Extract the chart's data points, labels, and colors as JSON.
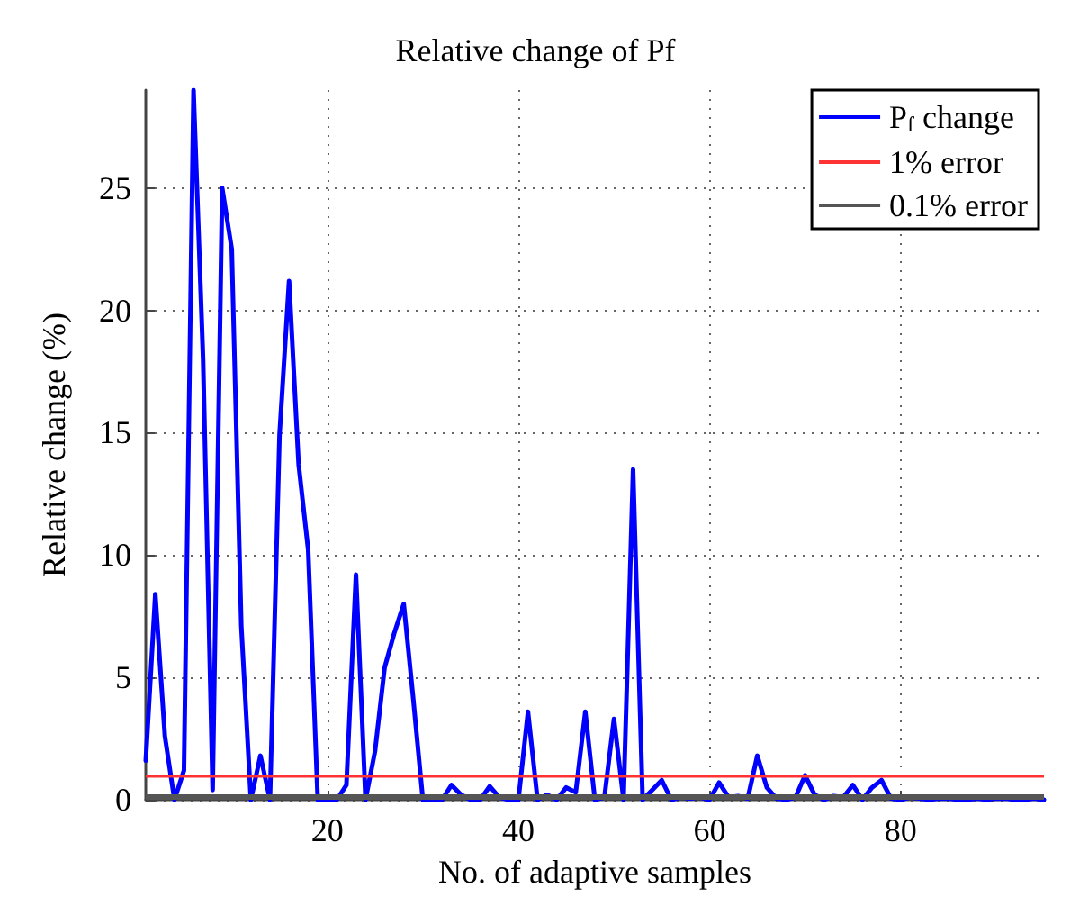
{
  "chart_data": {
    "type": "line",
    "title": "Relative change of Pf",
    "xlabel": "No. of adaptive samples",
    "ylabel": "Relative change (%)",
    "x": [
      1,
      2,
      3,
      4,
      5,
      6,
      7,
      8,
      9,
      10,
      11,
      12,
      13,
      14,
      15,
      16,
      17,
      18,
      19,
      20,
      21,
      22,
      23,
      24,
      25,
      26,
      27,
      28,
      29,
      30,
      31,
      32,
      33,
      34,
      35,
      36,
      37,
      38,
      39,
      40,
      41,
      42,
      43,
      44,
      45,
      46,
      47,
      48,
      49,
      50,
      51,
      52,
      53,
      54,
      55,
      56,
      57,
      58,
      59,
      60,
      61,
      62,
      63,
      64,
      65,
      66,
      67,
      68,
      69,
      70,
      71,
      72,
      73,
      74,
      75,
      76,
      77,
      78,
      79,
      80,
      81,
      82,
      83,
      84,
      85,
      86,
      87,
      88,
      89,
      90,
      91,
      92,
      93,
      94,
      95
    ],
    "series": [
      {
        "name": "P$_{f}$ change",
        "color": "#0000ff",
        "values": [
          1.6,
          8.4,
          2.6,
          0,
          1.2,
          29,
          18,
          0.4,
          25,
          22.5,
          7.1,
          0,
          1.8,
          0,
          14.9,
          21.2,
          13.7,
          10.2,
          0,
          0,
          0,
          0.6,
          9.2,
          0,
          2,
          5.4,
          6.8,
          8,
          4.1,
          0,
          0,
          0,
          0.6,
          0.2,
          0,
          0,
          0.55,
          0.1,
          0,
          0,
          3.6,
          0,
          0.2,
          0,
          0.5,
          0.3,
          3.6,
          0,
          0.1,
          3.3,
          0,
          13.5,
          0,
          0.4,
          0.8,
          0,
          0.1,
          0.05,
          0.1,
          0,
          0.7,
          0.1,
          0.15,
          0.05,
          1.8,
          0.5,
          0.05,
          0,
          0.1,
          1,
          0.2,
          0,
          0.15,
          0.1,
          0.6,
          0,
          0.5,
          0.8,
          0.05,
          0,
          0.1,
          0.05,
          0,
          0.05,
          0.05,
          0,
          0,
          0.05,
          0,
          0.05,
          0.05,
          0,
          0,
          0.05,
          0
        ]
      }
    ],
    "ref_lines": [
      {
        "axis": "y",
        "value": 1,
        "label": "1% error",
        "color": "#ff3333"
      },
      {
        "axis": "y",
        "value": 0.1,
        "label": "0.1% error",
        "color": "#555555"
      }
    ],
    "xlim": [
      1,
      95
    ],
    "ylim": [
      0,
      29
    ],
    "xticks": [
      20,
      40,
      60,
      80
    ],
    "yticks": [
      0,
      5,
      10,
      15,
      20,
      25
    ],
    "grid": true,
    "legend": "top right",
    "marker": "none",
    "line_style": "solid"
  }
}
